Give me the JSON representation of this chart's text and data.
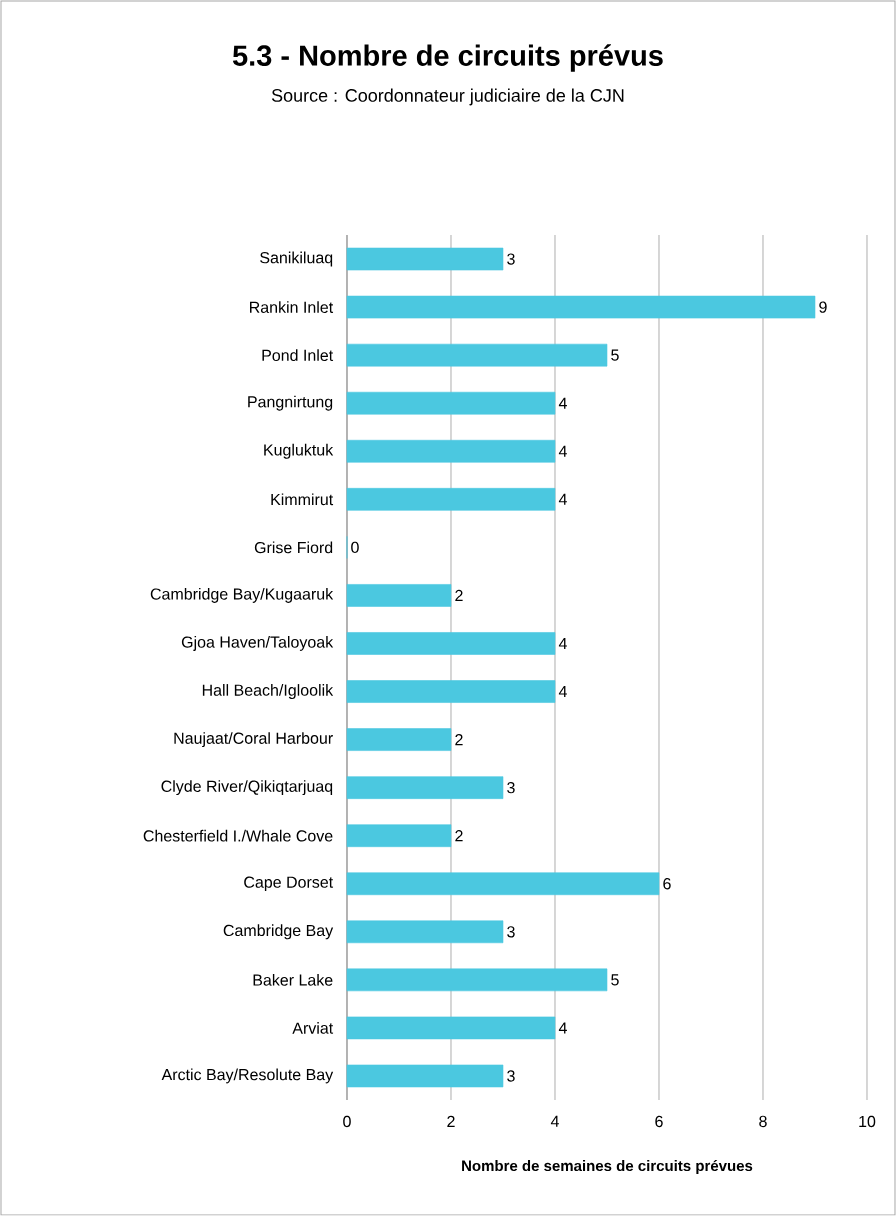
{
  "chart_data": {
    "type": "bar",
    "orientation": "horizontal",
    "title": "5.3 - Nombre de circuits prévus",
    "subtitle": "Source : Coordonnateur judiciaire de la CJN",
    "xlabel": "Nombre de semaines de circuits prévues",
    "categories": [
      "Sanikiluaq",
      "Rankin Inlet",
      "Pond Inlet",
      "Pangnirtung",
      "Kugluktuk",
      "Kimmirut",
      "Grise Fiord",
      "Cambridge Bay/Kugaaruk",
      "Gjoa Haven/Taloyoak",
      "Hall Beach/Igloolik",
      "Naujaat/Coral Harbour",
      "Clyde River/Qikiqtarjuaq",
      "Chesterfield I./Whale Cove",
      "Cape Dorset",
      "Cambridge Bay",
      "Baker Lake",
      "Arviat",
      "Arctic Bay/Resolute Bay"
    ],
    "values": [
      3,
      9,
      5,
      4,
      4,
      4,
      0,
      2,
      4,
      4,
      2,
      3,
      2,
      6,
      3,
      5,
      4,
      3
    ],
    "color": "#4bc8e0",
    "xlim": [
      0,
      10
    ],
    "xticks": [
      0,
      2,
      4,
      6,
      8,
      10
    ],
    "grid": "x",
    "data_labels": true
  }
}
